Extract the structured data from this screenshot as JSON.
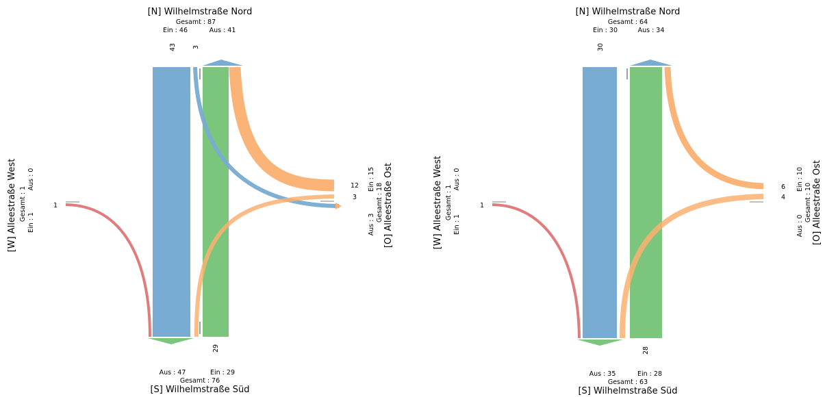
{
  "colors": {
    "north": "#78acd2",
    "south": "#7cc57c",
    "east": "#fbb070",
    "west": "#e17c7c",
    "mark": "#7f7f7f"
  },
  "diagrams": [
    {
      "north": {
        "name": "[N] Wilhelmstraße Nord",
        "total": "Gesamt : 87",
        "in": "Ein : 46",
        "out": "Aus : 41"
      },
      "south": {
        "name": "[S] Wilhelmstraße Süd",
        "total": "Gesamt : 76",
        "in": "Ein : 29",
        "out": "Aus : 47"
      },
      "west": {
        "name": "[W] Alleestraße West",
        "total": "Gesamt : 1",
        "in": "Ein : 1",
        "out": "Aus : 0"
      },
      "east": {
        "name": "[O] Alleestraße Ost",
        "total": "Gesamt : 18",
        "in": "Ein : 15",
        "out": "Aus : 3"
      },
      "flows": [
        {
          "label": "43",
          "from": "north",
          "to": "south",
          "value": 43
        },
        {
          "label": "3",
          "from": "north",
          "to": "east",
          "value": 3
        },
        {
          "label": "29",
          "from": "south",
          "to": "north",
          "value": 29
        },
        {
          "label": "12",
          "from": "east",
          "to": "north",
          "value": 12
        },
        {
          "label": "3",
          "from": "east",
          "to": "south",
          "value": 3
        },
        {
          "label": "1",
          "from": "west",
          "to": "south",
          "value": 1
        }
      ]
    },
    {
      "north": {
        "name": "[N] Wilhelmstraße Nord",
        "total": "Gesamt : 64",
        "in": "Ein : 30",
        "out": "Aus : 34"
      },
      "south": {
        "name": "[S] Wilhelmstraße Süd",
        "total": "Gesamt : 63",
        "in": "Ein : 28",
        "out": "Aus : 35"
      },
      "west": {
        "name": "[W] Alleestraße West",
        "total": "Gesamt : 1",
        "in": "Ein : 1",
        "out": "Aus : 0"
      },
      "east": {
        "name": "[O] Alleestraße Ost",
        "total": "Gesamt : 10",
        "in": "Ein : 10",
        "out": "Aus : 0"
      },
      "flows": [
        {
          "label": "30",
          "from": "north",
          "to": "south",
          "value": 30
        },
        {
          "label": "28",
          "from": "south",
          "to": "north",
          "value": 28
        },
        {
          "label": "6",
          "from": "east",
          "to": "north",
          "value": 6
        },
        {
          "label": "4",
          "from": "east",
          "to": "south",
          "value": 4
        },
        {
          "label": "1",
          "from": "west",
          "to": "south",
          "value": 1
        }
      ]
    }
  ]
}
